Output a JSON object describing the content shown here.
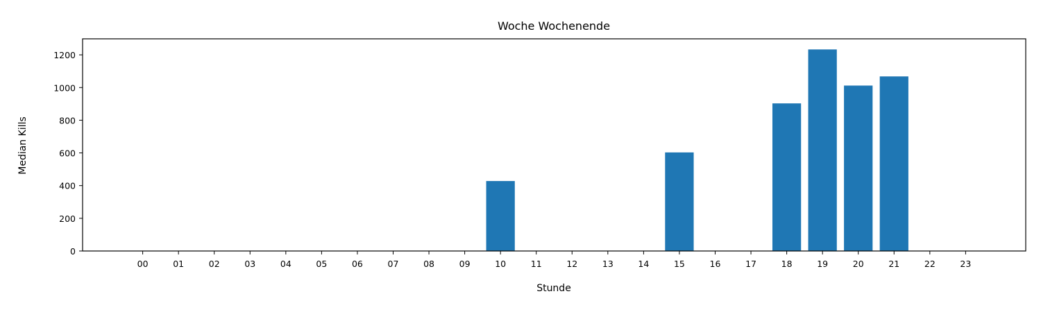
{
  "chart_data": {
    "type": "bar",
    "title": "Woche Wochenende",
    "xlabel": "Stunde",
    "ylabel": "Median Kills",
    "categories": [
      "00",
      "01",
      "02",
      "03",
      "04",
      "05",
      "06",
      "07",
      "08",
      "09",
      "10",
      "11",
      "12",
      "13",
      "14",
      "15",
      "16",
      "17",
      "18",
      "19",
      "20",
      "21",
      "22",
      "23"
    ],
    "values": [
      0,
      0,
      0,
      0,
      0,
      0,
      0,
      0,
      0,
      0,
      428,
      0,
      0,
      0,
      0,
      603,
      0,
      0,
      903,
      1233,
      1012,
      1068,
      0,
      0
    ],
    "ylim": [
      0,
      1300
    ],
    "yticks": [
      0,
      200,
      400,
      600,
      800,
      1000,
      1200
    ],
    "bar_color": "#1f77b4",
    "grid": false,
    "legend": "none"
  }
}
